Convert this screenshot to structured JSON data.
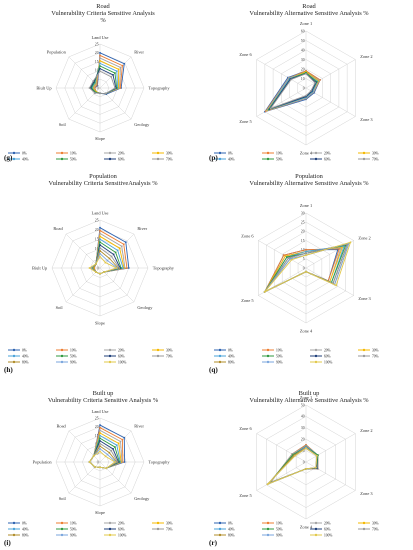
{
  "figure_labels": [
    "(g)",
    "(p)",
    "(h)",
    "(q)",
    "(i)",
    "(r)"
  ],
  "chart_data": [
    {
      "type": "radar",
      "label": "(g)",
      "title": [
        "Road",
        "Vulnerability Criteria Sensitive Analysis",
        "%"
      ],
      "categories": [
        "Land Use",
        "River",
        "Topography",
        "Geology",
        "Slope",
        "Soil",
        "Biult Up",
        "Population"
      ],
      "rlim": [
        0,
        25
      ],
      "ticks": [
        0,
        5,
        10,
        15,
        20,
        25
      ],
      "legend": [
        "0%",
        "10%",
        "20%",
        "30%",
        "40%",
        "50%",
        "60%",
        "70%"
      ],
      "series": [
        {
          "name": "0%",
          "color": "#2e63b1",
          "values": [
            20,
            19.5,
            12,
            5,
            3,
            3,
            3,
            2
          ]
        },
        {
          "name": "10%",
          "color": "#ed7d31",
          "values": [
            18.5,
            18,
            11.5,
            4.5,
            3,
            3,
            3,
            2.5
          ]
        },
        {
          "name": "20%",
          "color": "#a5a5a5",
          "values": [
            17,
            16.5,
            11,
            4.5,
            3,
            3,
            3.5,
            3
          ]
        },
        {
          "name": "30%",
          "color": "#f5b800",
          "values": [
            15.5,
            15,
            10.5,
            4.5,
            3,
            3,
            4,
            3.5
          ]
        },
        {
          "name": "40%",
          "color": "#4aa3d9",
          "values": [
            14,
            13.5,
            10,
            4.5,
            3,
            3.5,
            4.5,
            4
          ]
        },
        {
          "name": "50%",
          "color": "#2f9a3f",
          "values": [
            12.5,
            12,
            9.5,
            4.5,
            3,
            3.5,
            5,
            4.5
          ]
        },
        {
          "name": "60%",
          "color": "#1f3f7a",
          "values": [
            11,
            10.5,
            9,
            4.5,
            3,
            4,
            5.5,
            5
          ]
        },
        {
          "name": "70%",
          "color": "#9a9a9a",
          "values": [
            9.5,
            9,
            8.5,
            4.5,
            3,
            4,
            6,
            5.5
          ]
        }
      ]
    },
    {
      "type": "radar",
      "label": "(p)",
      "title": [
        "Road",
        "Vulnerability Alternative Sensitive Analysis %"
      ],
      "categories": [
        "Zone 1",
        "Zone 2",
        "Zone 3",
        "Zone 4",
        "Zone 5",
        "Zone 6"
      ],
      "rlim": [
        0,
        60
      ],
      "ticks": [
        0,
        10,
        20,
        30,
        40,
        50,
        60
      ],
      "legend": [
        "0%",
        "10%",
        "20%",
        "30%",
        "40%",
        "50%",
        "60%",
        "70%"
      ],
      "series": [
        {
          "name": "0%",
          "color": "#2e63b1",
          "values": [
            18,
            17,
            10,
            12,
            50,
            22
          ]
        },
        {
          "name": "10%",
          "color": "#ed7d31",
          "values": [
            18,
            17,
            9,
            11,
            49,
            21
          ]
        },
        {
          "name": "20%",
          "color": "#a5a5a5",
          "values": [
            17,
            16,
            9,
            11,
            48,
            21
          ]
        },
        {
          "name": "30%",
          "color": "#f5b800",
          "values": [
            17,
            15,
            8,
            10,
            47,
            20
          ]
        },
        {
          "name": "40%",
          "color": "#4aa3d9",
          "values": [
            16,
            14,
            8,
            10,
            46,
            20
          ]
        },
        {
          "name": "50%",
          "color": "#2f9a3f",
          "values": [
            16,
            13,
            7,
            9,
            45,
            19
          ]
        },
        {
          "name": "60%",
          "color": "#1f3f7a",
          "values": [
            15,
            12,
            7,
            9,
            44,
            19
          ]
        },
        {
          "name": "70%",
          "color": "#9a9a9a",
          "values": [
            15,
            11,
            6,
            8,
            43,
            18
          ]
        }
      ]
    },
    {
      "type": "radar",
      "label": "(h)",
      "title": [
        "Population",
        "Vulnerability Criteria SensitiveAnalysis %"
      ],
      "categories": [
        "Land Use",
        "River",
        "Topography",
        "Geology",
        "Slope",
        "Soil",
        "Biult Up",
        "Road"
      ],
      "rlim": [
        0,
        25
      ],
      "ticks": [
        0,
        5,
        10,
        15,
        20,
        25
      ],
      "legend": [
        "0%",
        "10%",
        "20%",
        "30%",
        "40%",
        "50%",
        "60%",
        "70%",
        "80%",
        "90%",
        "100%"
      ],
      "series": [
        {
          "name": "0%",
          "color": "#2e63b1",
          "values": [
            21,
            19,
            15,
            3,
            3,
            3,
            3,
            3
          ]
        },
        {
          "name": "10%",
          "color": "#ed7d31",
          "values": [
            19.5,
            17.5,
            14,
            3,
            3,
            3,
            3,
            3
          ]
        },
        {
          "name": "20%",
          "color": "#a5a5a5",
          "values": [
            18,
            16,
            13,
            3,
            3,
            3,
            3.5,
            3
          ]
        },
        {
          "name": "30%",
          "color": "#f5b800",
          "values": [
            16.5,
            14.5,
            12.5,
            3,
            3,
            3,
            3.5,
            3
          ]
        },
        {
          "name": "40%",
          "color": "#4aa3d9",
          "values": [
            15,
            13,
            12,
            3,
            3,
            3,
            4,
            3
          ]
        },
        {
          "name": "50%",
          "color": "#2f9a3f",
          "values": [
            13.5,
            11.5,
            11,
            3,
            3,
            3,
            4,
            3
          ]
        },
        {
          "name": "60%",
          "color": "#1f3f7a",
          "values": [
            12,
            10,
            10.5,
            3,
            3,
            3,
            4.5,
            3
          ]
        },
        {
          "name": "70%",
          "color": "#9a9a9a",
          "values": [
            10.5,
            8.5,
            10,
            3,
            3,
            3,
            4.5,
            3
          ]
        },
        {
          "name": "80%",
          "color": "#b08d2a",
          "values": [
            9,
            7,
            9.5,
            3,
            3,
            3,
            5,
            3
          ]
        },
        {
          "name": "90%",
          "color": "#7aa6dd",
          "values": [
            7.5,
            5.5,
            9,
            3,
            3,
            3,
            5,
            3
          ]
        },
        {
          "name": "100%",
          "color": "#e2c84a",
          "values": [
            6,
            4,
            8.5,
            3,
            3,
            3,
            5.5,
            3
          ]
        }
      ]
    },
    {
      "type": "radar",
      "label": "(q)",
      "title": [
        "Population",
        "Vulnerability Alternative Sensitive Analysis %"
      ],
      "categories": [
        "Zone 1",
        "Zone 2",
        "Zone 3",
        "Zone 4",
        "Zone 5",
        "Zone 6"
      ],
      "rlim": [
        0,
        30
      ],
      "ticks": [
        0,
        5,
        10,
        15,
        20,
        25,
        30
      ],
      "legend": [
        "0%",
        "10%",
        "20%",
        "30%",
        "40%",
        "50%",
        "60%",
        "70%",
        "80%",
        "90%",
        "100%"
      ],
      "series": [
        {
          "name": "0%",
          "color": "#2e63b1",
          "values": [
            10,
            20,
            14,
            2,
            26,
            14
          ]
        },
        {
          "name": "10%",
          "color": "#ed7d31",
          "values": [
            10,
            21,
            14,
            2,
            26,
            14
          ]
        },
        {
          "name": "20%",
          "color": "#a5a5a5",
          "values": [
            9,
            22,
            15,
            2,
            26,
            13
          ]
        },
        {
          "name": "30%",
          "color": "#f5b800",
          "values": [
            9,
            23,
            15,
            2,
            26,
            13
          ]
        },
        {
          "name": "40%",
          "color": "#4aa3d9",
          "values": [
            9,
            24,
            16,
            2,
            26,
            12
          ]
        },
        {
          "name": "50%",
          "color": "#2f9a3f",
          "values": [
            8,
            25,
            16,
            2,
            26,
            12
          ]
        },
        {
          "name": "60%",
          "color": "#1f3f7a",
          "values": [
            8,
            26,
            17,
            2,
            26,
            11
          ]
        },
        {
          "name": "70%",
          "color": "#9a9a9a",
          "values": [
            8,
            26,
            17,
            2,
            26,
            11
          ]
        },
        {
          "name": "80%",
          "color": "#b08d2a",
          "values": [
            7,
            27,
            18,
            2,
            26,
            10
          ]
        },
        {
          "name": "90%",
          "color": "#7aa6dd",
          "values": [
            7,
            27,
            18,
            2,
            26,
            10
          ]
        },
        {
          "name": "100%",
          "color": "#e2c84a",
          "values": [
            7,
            28,
            19,
            2,
            26,
            9
          ]
        }
      ]
    },
    {
      "type": "radar",
      "label": "(i)",
      "title": [
        "Built up",
        "Vulnerability Criteria Sensitive Analysis %"
      ],
      "categories": [
        "Land Use",
        "River",
        "Topography",
        "Geology",
        "Slope",
        "Soil",
        "Population",
        "Road"
      ],
      "rlim": [
        0,
        25
      ],
      "ticks": [
        0,
        5,
        10,
        15,
        20,
        25
      ],
      "legend": [
        "0%",
        "10%",
        "20%",
        "30%",
        "40%",
        "50%",
        "60%",
        "70%",
        "80%",
        "90%",
        "100%"
      ],
      "series": [
        {
          "name": "0%",
          "color": "#2e63b1",
          "values": [
            21,
            19.5,
            14,
            5,
            3,
            4,
            6,
            5
          ]
        },
        {
          "name": "10%",
          "color": "#ed7d31",
          "values": [
            19.5,
            18,
            13,
            5,
            3,
            4,
            6,
            5
          ]
        },
        {
          "name": "20%",
          "color": "#a5a5a5",
          "values": [
            18,
            16.5,
            12.5,
            5,
            3,
            4,
            6,
            5
          ]
        },
        {
          "name": "30%",
          "color": "#f5b800",
          "values": [
            16.5,
            15,
            12,
            5,
            3,
            4,
            6,
            5
          ]
        },
        {
          "name": "40%",
          "color": "#4aa3d9",
          "values": [
            15,
            13.5,
            11.5,
            5,
            3,
            4,
            6,
            5
          ]
        },
        {
          "name": "50%",
          "color": "#2f9a3f",
          "values": [
            13.5,
            12,
            11,
            5,
            3,
            4,
            6,
            5
          ]
        },
        {
          "name": "60%",
          "color": "#1f3f7a",
          "values": [
            12,
            10.5,
            10.5,
            5,
            3,
            4,
            6,
            5
          ]
        },
        {
          "name": "70%",
          "color": "#9a9a9a",
          "values": [
            10.5,
            9,
            10,
            5,
            3,
            4,
            6,
            5
          ]
        },
        {
          "name": "80%",
          "color": "#b08d2a",
          "values": [
            9,
            7.5,
            9.5,
            5,
            3,
            4,
            6,
            5
          ]
        },
        {
          "name": "90%",
          "color": "#7aa6dd",
          "values": [
            7.5,
            6,
            9,
            5,
            3,
            4,
            6,
            5
          ]
        },
        {
          "name": "100%",
          "color": "#e2c84a",
          "values": [
            6,
            4.5,
            8.5,
            5,
            3,
            4,
            6,
            5
          ]
        }
      ]
    },
    {
      "type": "radar",
      "label": "(r)",
      "title": [
        "Built up",
        "Vulnerability Alternative Sensitive Analysis %"
      ],
      "categories": [
        "Zone 1",
        "Zone 2",
        "Zone 3",
        "Zone 4",
        "Zone 5",
        "Zone 6"
      ],
      "rlim": [
        0,
        50
      ],
      "ticks": [
        0,
        10,
        20,
        30,
        40,
        50
      ],
      "legend": [
        "0%",
        "10%",
        "20%",
        "30%",
        "40%",
        "50%",
        "60%",
        "70%",
        "80%",
        "90%",
        "100%"
      ],
      "series": [
        {
          "name": "0%",
          "color": "#2e63b1",
          "values": [
            15,
            12,
            12,
            6,
            36,
            14
          ]
        },
        {
          "name": "10%",
          "color": "#ed7d31",
          "values": [
            15,
            12,
            12,
            6,
            36,
            14
          ]
        },
        {
          "name": "20%",
          "color": "#a5a5a5",
          "values": [
            14,
            12,
            12,
            6,
            37,
            14
          ]
        },
        {
          "name": "30%",
          "color": "#f5b800",
          "values": [
            14,
            12,
            11,
            6,
            37,
            13
          ]
        },
        {
          "name": "40%",
          "color": "#4aa3d9",
          "values": [
            14,
            12,
            11,
            6,
            37,
            13
          ]
        },
        {
          "name": "50%",
          "color": "#2f9a3f",
          "values": [
            13,
            12,
            11,
            6,
            38,
            13
          ]
        },
        {
          "name": "60%",
          "color": "#1f3f7a",
          "values": [
            13,
            11,
            11,
            6,
            38,
            12
          ]
        },
        {
          "name": "70%",
          "color": "#9a9a9a",
          "values": [
            13,
            11,
            10,
            6,
            38,
            12
          ]
        },
        {
          "name": "80%",
          "color": "#b08d2a",
          "values": [
            12,
            11,
            10,
            6,
            39,
            12
          ]
        },
        {
          "name": "90%",
          "color": "#7aa6dd",
          "values": [
            12,
            11,
            10,
            6,
            39,
            11
          ]
        },
        {
          "name": "100%",
          "color": "#e2c84a",
          "values": [
            12,
            11,
            10,
            6,
            39,
            11
          ]
        }
      ]
    }
  ]
}
